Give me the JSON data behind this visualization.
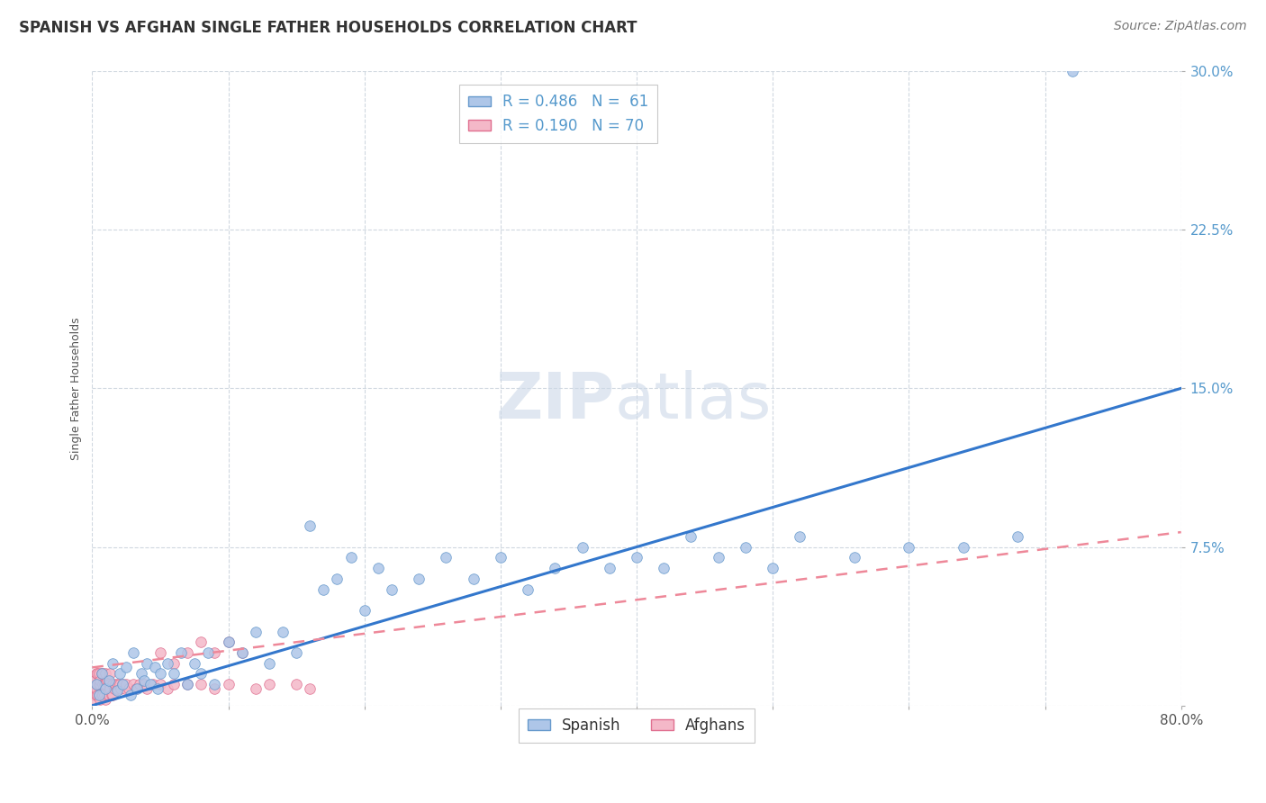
{
  "title": "SPANISH VS AFGHAN SINGLE FATHER HOUSEHOLDS CORRELATION CHART",
  "source": "Source: ZipAtlas.com",
  "ylabel": "Single Father Households",
  "xlim": [
    0,
    0.8
  ],
  "ylim": [
    0,
    0.3
  ],
  "ytick_vals": [
    0.0,
    0.075,
    0.15,
    0.225,
    0.3
  ],
  "ytick_labels": [
    "",
    "7.5%",
    "15.0%",
    "22.5%",
    "30.0%"
  ],
  "xtick_vals": [
    0.0,
    0.1,
    0.2,
    0.3,
    0.4,
    0.5,
    0.6,
    0.7,
    0.8
  ],
  "xtick_labels": [
    "0.0%",
    "",
    "",
    "",
    "",
    "",
    "",
    "",
    "80.0%"
  ],
  "watermark_zip": "ZIP",
  "watermark_atlas": "atlas",
  "legend_r1": "R = 0.486",
  "legend_n1": "N =  61",
  "legend_r2": "R = 0.190",
  "legend_n2": "N = 70",
  "spanish_color": "#aec6e8",
  "afghan_color": "#f4b8c8",
  "spanish_edge": "#6699cc",
  "afghan_edge": "#e07090",
  "reg_blue": "#3377cc",
  "reg_pink": "#ee8899",
  "tick_color": "#5599cc",
  "background": "#ffffff",
  "grid_color": "#d0d8e0",
  "title_color": "#333333",
  "source_color": "#777777",
  "ylabel_color": "#555555",
  "title_fontsize": 12,
  "source_fontsize": 10,
  "axis_label_fontsize": 9,
  "tick_fontsize": 11,
  "legend_fontsize": 12,
  "watermark_zip_size": 52,
  "watermark_atlas_size": 52,
  "spanish_x": [
    0.003,
    0.005,
    0.007,
    0.01,
    0.012,
    0.015,
    0.018,
    0.02,
    0.022,
    0.025,
    0.028,
    0.03,
    0.033,
    0.036,
    0.038,
    0.04,
    0.043,
    0.046,
    0.048,
    0.05,
    0.055,
    0.06,
    0.065,
    0.07,
    0.075,
    0.08,
    0.085,
    0.09,
    0.1,
    0.11,
    0.12,
    0.13,
    0.14,
    0.15,
    0.16,
    0.17,
    0.18,
    0.19,
    0.2,
    0.21,
    0.22,
    0.24,
    0.26,
    0.28,
    0.3,
    0.32,
    0.34,
    0.36,
    0.38,
    0.4,
    0.42,
    0.44,
    0.46,
    0.48,
    0.5,
    0.52,
    0.56,
    0.6,
    0.64,
    0.68,
    0.72
  ],
  "spanish_y": [
    0.01,
    0.005,
    0.015,
    0.008,
    0.012,
    0.02,
    0.007,
    0.015,
    0.01,
    0.018,
    0.005,
    0.025,
    0.008,
    0.015,
    0.012,
    0.02,
    0.01,
    0.018,
    0.008,
    0.015,
    0.02,
    0.015,
    0.025,
    0.01,
    0.02,
    0.015,
    0.025,
    0.01,
    0.03,
    0.025,
    0.035,
    0.02,
    0.035,
    0.025,
    0.085,
    0.055,
    0.06,
    0.07,
    0.045,
    0.065,
    0.055,
    0.06,
    0.07,
    0.06,
    0.07,
    0.055,
    0.065,
    0.075,
    0.065,
    0.07,
    0.065,
    0.08,
    0.07,
    0.075,
    0.065,
    0.08,
    0.07,
    0.075,
    0.075,
    0.08,
    0.3
  ],
  "afghan_x": [
    0.001,
    0.001,
    0.002,
    0.002,
    0.002,
    0.003,
    0.003,
    0.003,
    0.004,
    0.004,
    0.004,
    0.005,
    0.005,
    0.005,
    0.006,
    0.006,
    0.006,
    0.007,
    0.007,
    0.008,
    0.008,
    0.008,
    0.009,
    0.009,
    0.01,
    0.01,
    0.01,
    0.011,
    0.011,
    0.012,
    0.012,
    0.013,
    0.013,
    0.014,
    0.015,
    0.015,
    0.016,
    0.017,
    0.018,
    0.019,
    0.02,
    0.021,
    0.022,
    0.024,
    0.025,
    0.027,
    0.03,
    0.032,
    0.035,
    0.038,
    0.04,
    0.045,
    0.05,
    0.055,
    0.06,
    0.07,
    0.08,
    0.09,
    0.1,
    0.12,
    0.13,
    0.15,
    0.16,
    0.05,
    0.06,
    0.07,
    0.08,
    0.09,
    0.1,
    0.11
  ],
  "afghan_y": [
    0.005,
    0.008,
    0.003,
    0.01,
    0.012,
    0.005,
    0.008,
    0.015,
    0.005,
    0.01,
    0.015,
    0.005,
    0.01,
    0.015,
    0.003,
    0.01,
    0.012,
    0.005,
    0.015,
    0.005,
    0.01,
    0.015,
    0.005,
    0.01,
    0.003,
    0.01,
    0.015,
    0.005,
    0.012,
    0.005,
    0.01,
    0.008,
    0.015,
    0.005,
    0.005,
    0.01,
    0.008,
    0.01,
    0.008,
    0.01,
    0.01,
    0.008,
    0.01,
    0.008,
    0.01,
    0.008,
    0.01,
    0.008,
    0.01,
    0.01,
    0.008,
    0.01,
    0.01,
    0.008,
    0.01,
    0.01,
    0.01,
    0.008,
    0.01,
    0.008,
    0.01,
    0.01,
    0.008,
    0.025,
    0.02,
    0.025,
    0.03,
    0.025,
    0.03,
    0.025
  ]
}
